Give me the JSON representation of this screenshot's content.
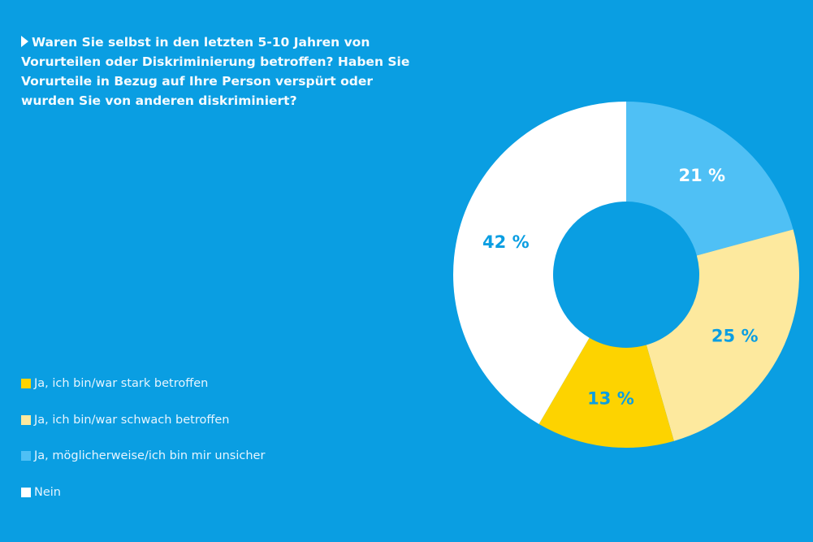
{
  "chart_data": {
    "type": "pie",
    "donut": true,
    "title": "Waren Sie selbst in den letzten 5-10 Jahren von Vorurteilen oder Diskriminierung betroffen? Haben Sie Vorurteile in Bezug auf Ihre Person verspürt oder wurden Sie von anderen diskriminiert?",
    "legend_position": "bottom-left",
    "slices": [
      {
        "label": "Ja, möglicherweise/ich bin mir unsicher",
        "value": 21,
        "display": "21 %",
        "color": "#4fc0f5",
        "text_color": "#ffffff"
      },
      {
        "label": "Ja, ich bin/war schwach betroffen",
        "value": 25,
        "display": "25 %",
        "color": "#fde99e",
        "text_color": "#0a9ee2"
      },
      {
        "label": "Ja, ich bin/war stark betroffen",
        "value": 13,
        "display": "13 %",
        "color": "#fdd300",
        "text_color": "#0a9ee2"
      },
      {
        "label": "Nein",
        "value": 42,
        "display": "42 %",
        "color": "#ffffff",
        "text_color": "#0a9ee2"
      }
    ],
    "legend_order": [
      2,
      1,
      0,
      3
    ]
  }
}
